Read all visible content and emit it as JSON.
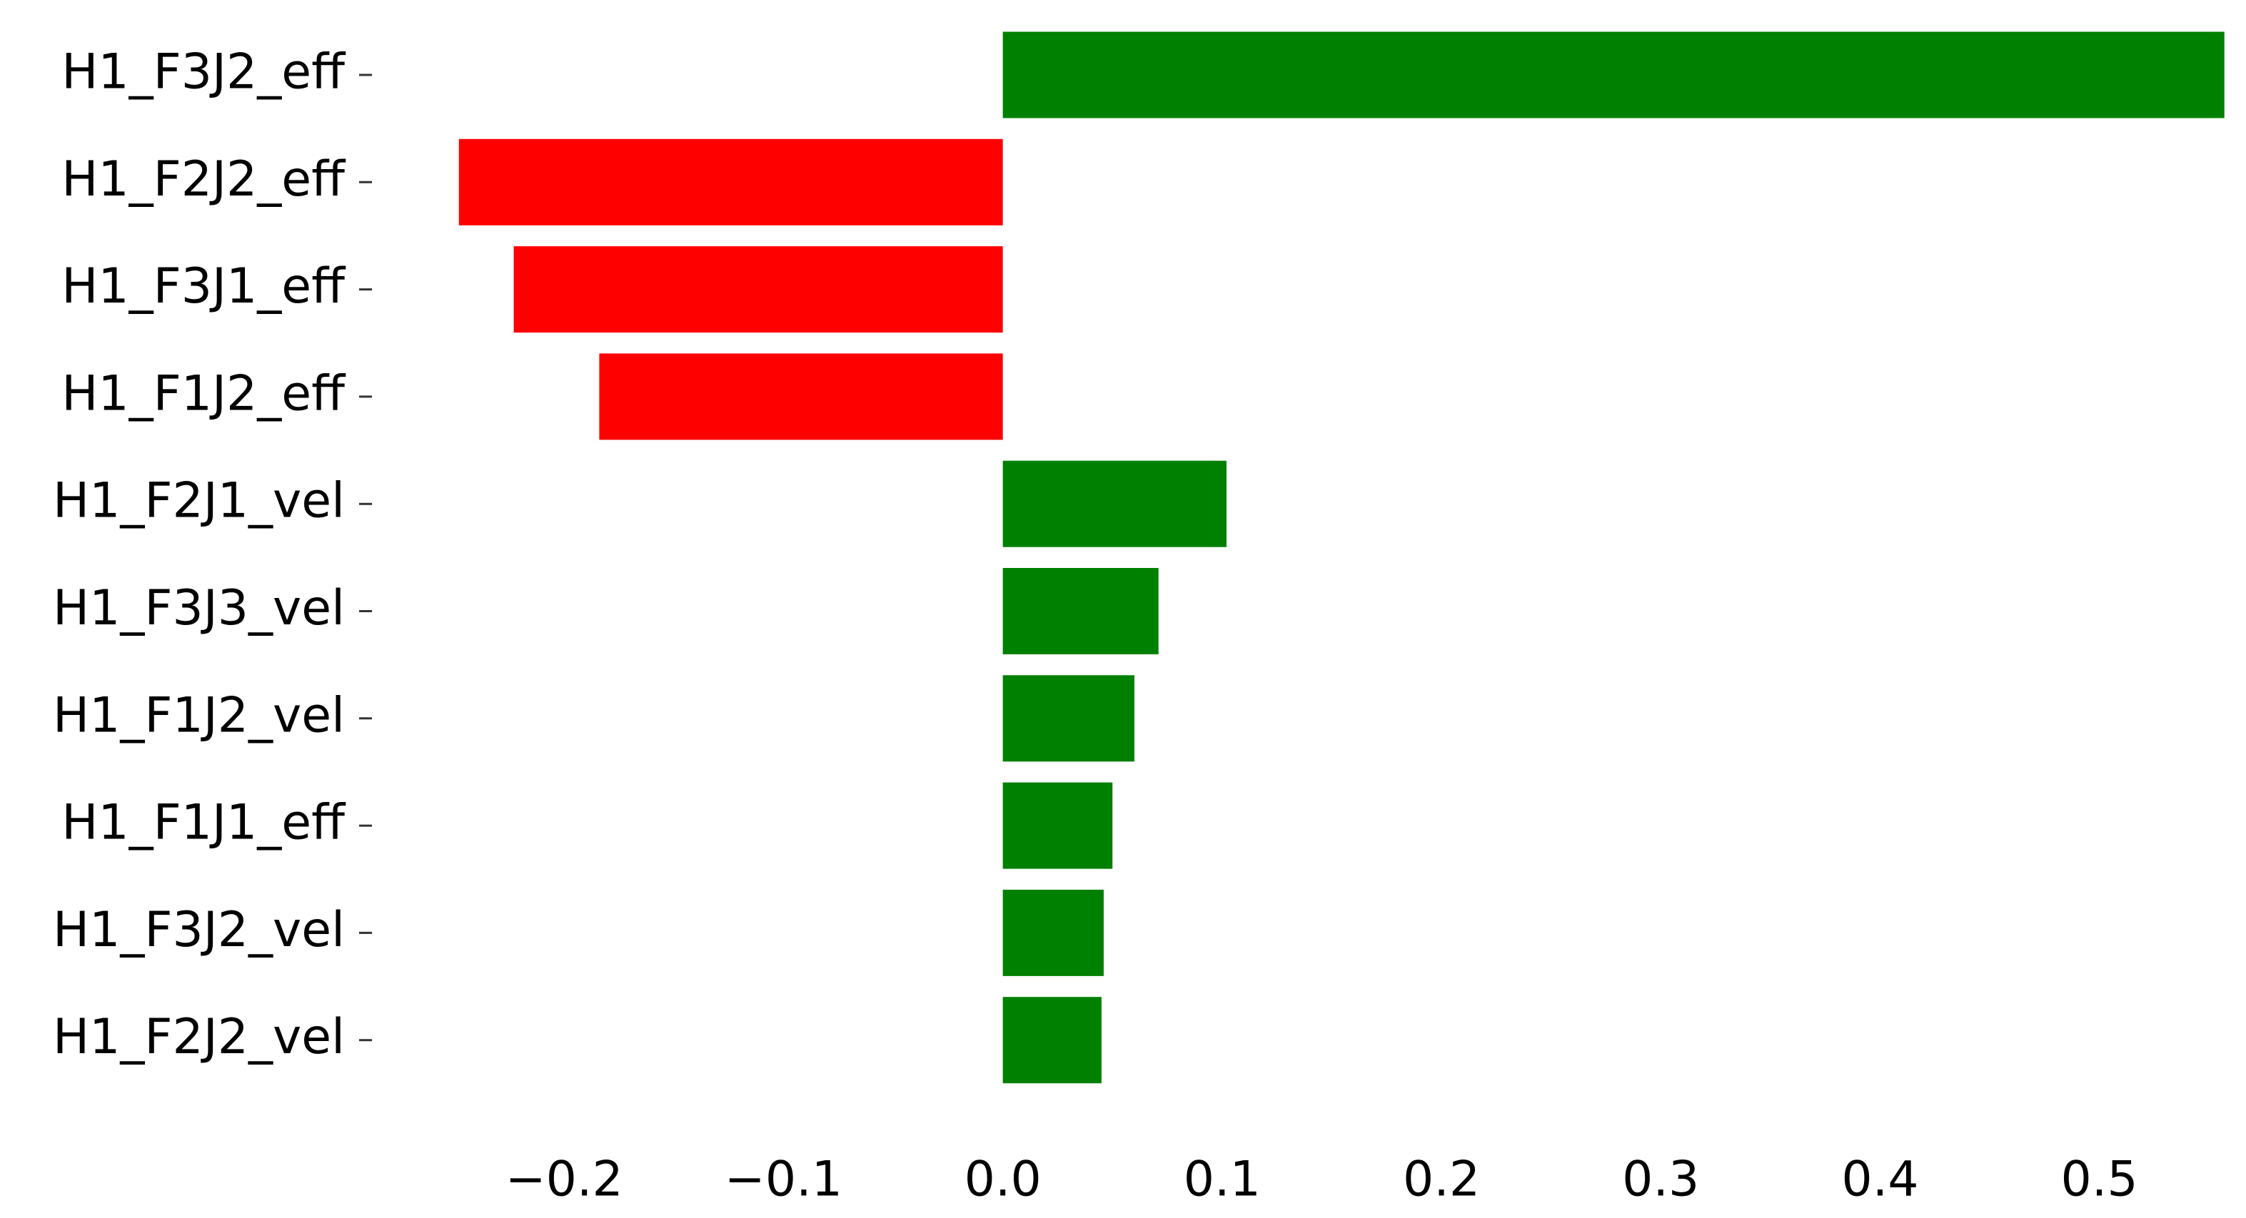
{
  "chart_data": {
    "type": "barh",
    "categories": [
      "H1_F3J2_eff",
      "H1_F2J2_eff",
      "H1_F3J1_eff",
      "H1_F1J2_eff",
      "H1_F2J1_vel",
      "H1_F3J3_vel",
      "H1_F1J2_vel",
      "H1_F1J1_eff",
      "H1_F3J2_vel",
      "H1_F2J2_vel"
    ],
    "values": [
      0.557,
      -0.248,
      -0.223,
      -0.184,
      0.102,
      0.071,
      0.06,
      0.05,
      0.046,
      0.045
    ],
    "colors": [
      "#008000",
      "#ff0000",
      "#ff0000",
      "#ff0000",
      "#008000",
      "#008000",
      "#008000",
      "#008000",
      "#008000",
      "#008000"
    ],
    "xlim": [
      -0.287,
      0.561
    ],
    "xticks": [
      {
        "value": -0.2,
        "label": "−0.2"
      },
      {
        "value": -0.1,
        "label": "−0.1"
      },
      {
        "value": 0.0,
        "label": "0.0"
      },
      0.1,
      0.2,
      0.3,
      0.4,
      0.5
    ]
  }
}
